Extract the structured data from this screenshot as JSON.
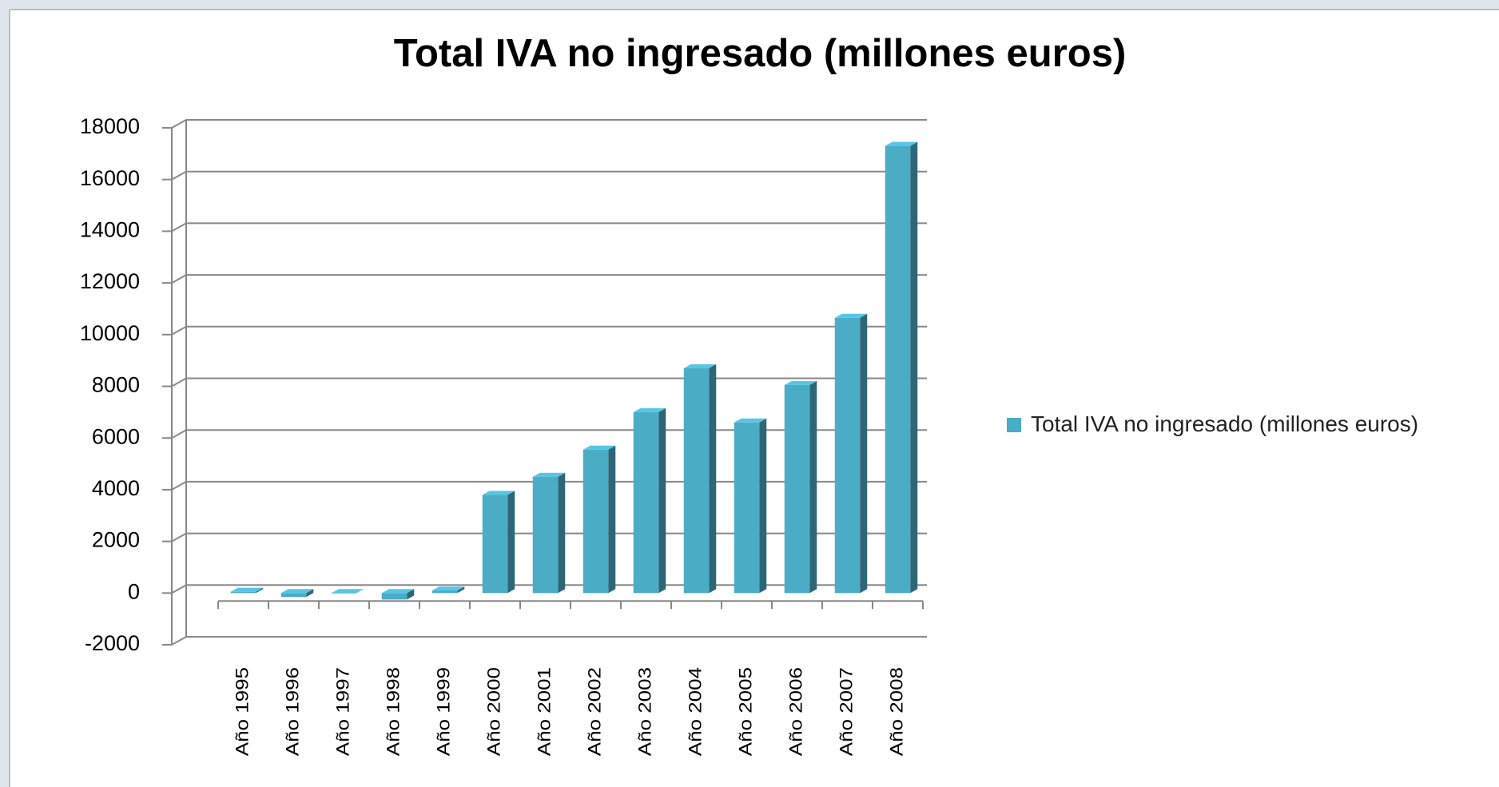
{
  "chart_data": {
    "type": "bar3d",
    "title": "Total IVA no ingresado (millones euros)",
    "categories": [
      "Año 1995",
      "Año 1996",
      "Año 1997",
      "Año 1998",
      "Año 1999",
      "Año 2000",
      "Año 2001",
      "Año 2002",
      "Año 2003",
      "Año 2004",
      "Año 2005",
      "Año 2006",
      "Año 2007",
      "Año 2008"
    ],
    "series": [
      {
        "name": "Total IVA no ingresado (millones euros)",
        "color": "#4bacc6",
        "values": [
          50,
          -150,
          0,
          -250,
          100,
          3800,
          4500,
          5550,
          7000,
          8700,
          6600,
          8050,
          10650,
          17300
        ]
      }
    ],
    "ylim": [
      -2000,
      18000
    ],
    "yticks": [
      -2000,
      0,
      2000,
      4000,
      6000,
      8000,
      10000,
      12000,
      14000,
      16000,
      18000
    ],
    "grid": true,
    "legend": "right"
  }
}
